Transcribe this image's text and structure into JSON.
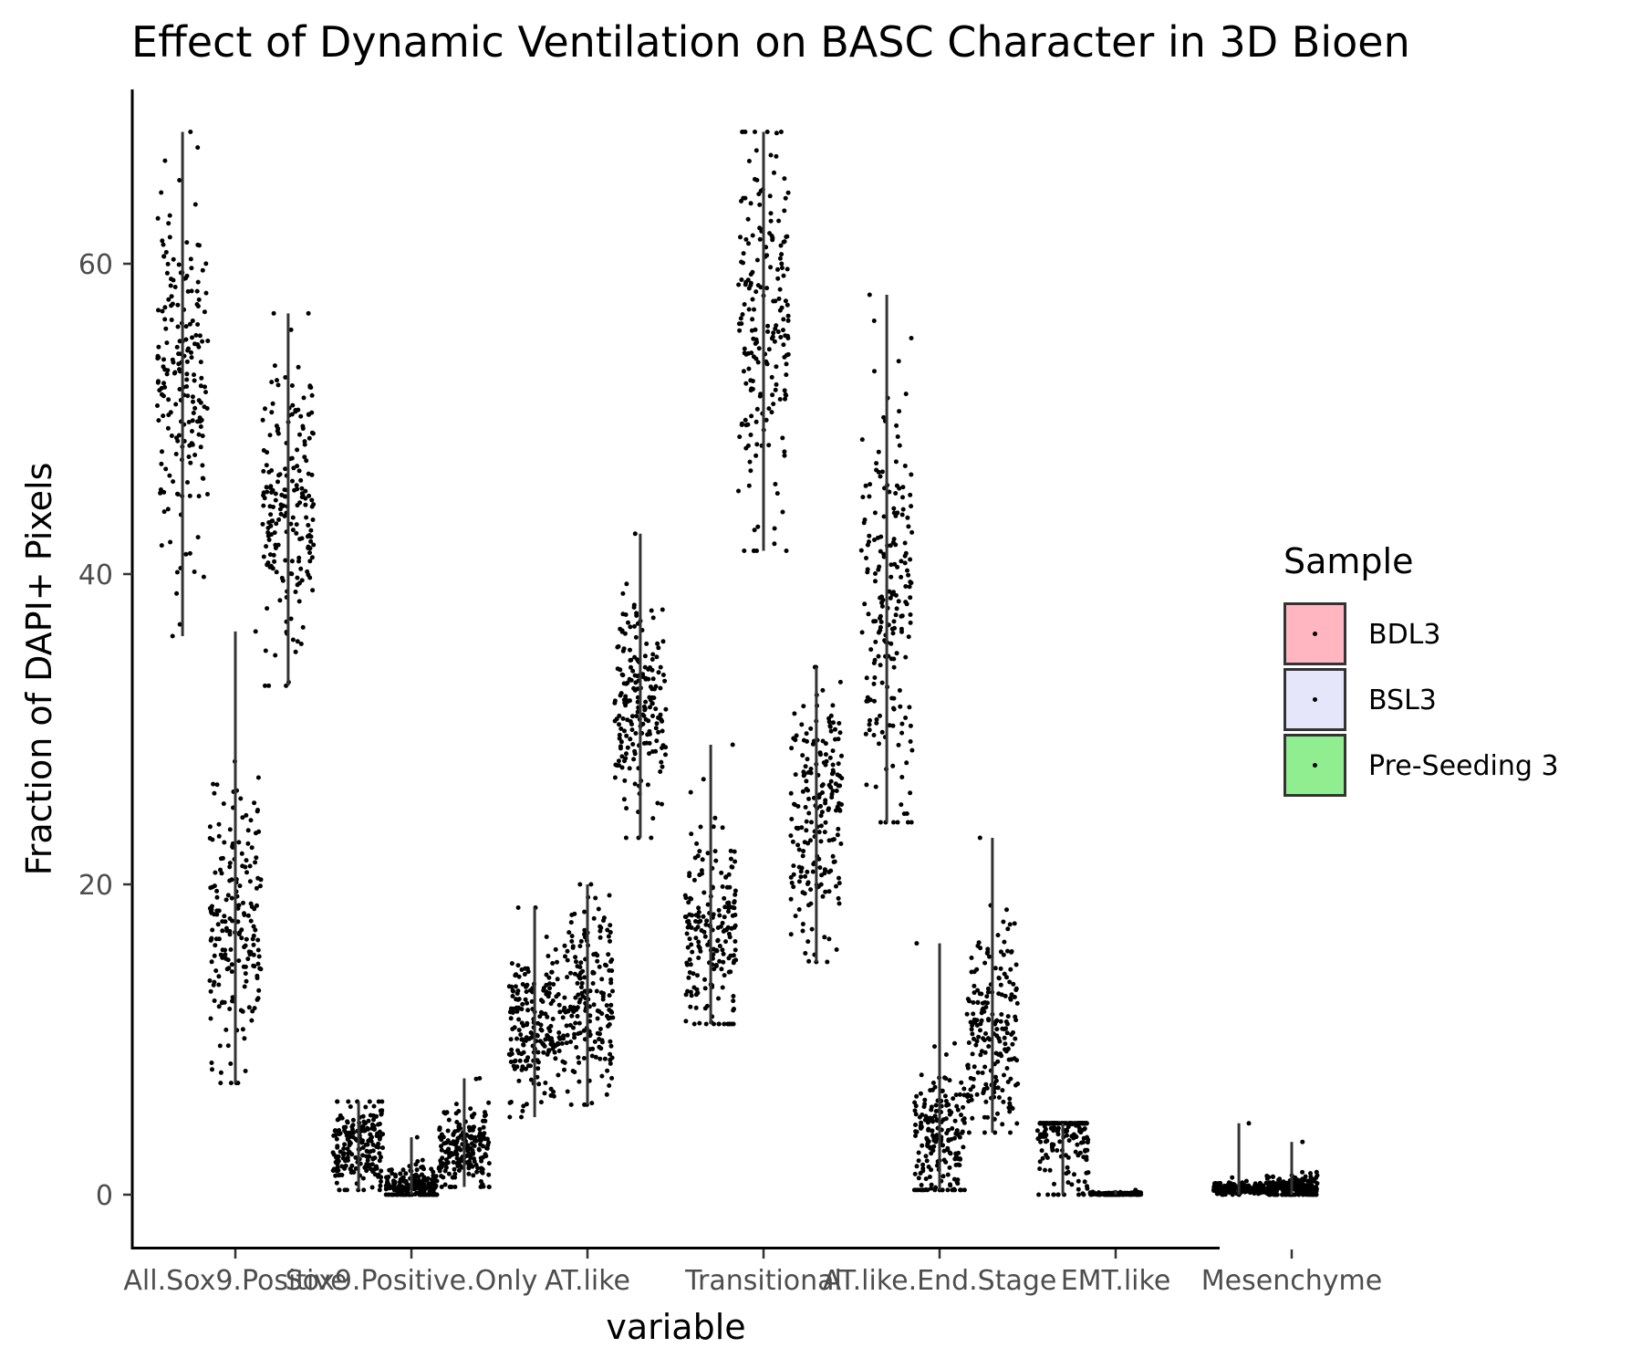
{
  "chart_data": {
    "type": "scatter",
    "subtype": "jitter strip plot with range lines",
    "title": "Effect of Dynamic Ventilation on BASC Character in 3D Bioen",
    "xlabel": "variable",
    "ylabel": "Fraction of DAPI+ Pixels",
    "ylim": [
      -3.5,
      71
    ],
    "yticks": [
      0,
      20,
      40,
      60
    ],
    "grid": false,
    "legend": {
      "title": "Sample",
      "position": "right",
      "entries": [
        {
          "label": "BDL3",
          "fill": "#ffb6c1"
        },
        {
          "label": "BSL3",
          "fill": "#e6e6fa"
        },
        {
          "label": "Pre-Seeding 3",
          "fill": "#90ee90"
        }
      ]
    },
    "categories": [
      "All.Sox9.Positive",
      "Sox9.Positive.Only",
      "AT.like",
      "Transitional",
      "AT.like.End.Stage",
      "EMT.like",
      "Mesenchyme"
    ],
    "series": [
      {
        "name": "BDL3",
        "offset": -0.3,
        "ranges": [
          [
            36,
            68.5
          ],
          [
            0.3,
            6
          ],
          [
            5,
            18.5
          ],
          [
            11,
            29
          ],
          [
            24,
            58
          ],
          [
            0,
            4.6
          ],
          [
            0,
            4.6
          ]
        ],
        "centers": [
          52.5,
          3,
          10.5,
          17,
          38.5,
          4.5,
          0.4
        ],
        "spreads": [
          6,
          1.4,
          2.5,
          3.5,
          7,
          2.4,
          0.2
        ]
      },
      {
        "name": "BSL3",
        "offset": 0.0,
        "ranges": [
          [
            7.2,
            36.3
          ],
          [
            0,
            3.7
          ],
          [
            5.8,
            20
          ],
          [
            41.5,
            68.5
          ],
          [
            0.3,
            16.2
          ],
          [
            0,
            0.3
          ],
          [
            0,
            3.4
          ]
        ],
        "centers": [
          17.5,
          0.6,
          12.5,
          55,
          3.5,
          0.05,
          0.4
        ],
        "spreads": [
          4.5,
          0.6,
          3,
          6.5,
          2.2,
          0.05,
          0.4
        ]
      },
      {
        "name": "Pre-Seeding 3",
        "offset": 0.3,
        "ranges": [
          [
            32.8,
            56.8
          ],
          [
            0.5,
            7.5
          ],
          [
            23,
            42.6
          ],
          [
            15,
            34
          ],
          [
            4,
            23
          ],
          null,
          null
        ],
        "centers": [
          44.5,
          2.8,
          31.5,
          24.5,
          10.5,
          null,
          null
        ],
        "spreads": [
          4.5,
          1.3,
          3.5,
          4,
          3,
          null,
          null
        ]
      }
    ]
  }
}
